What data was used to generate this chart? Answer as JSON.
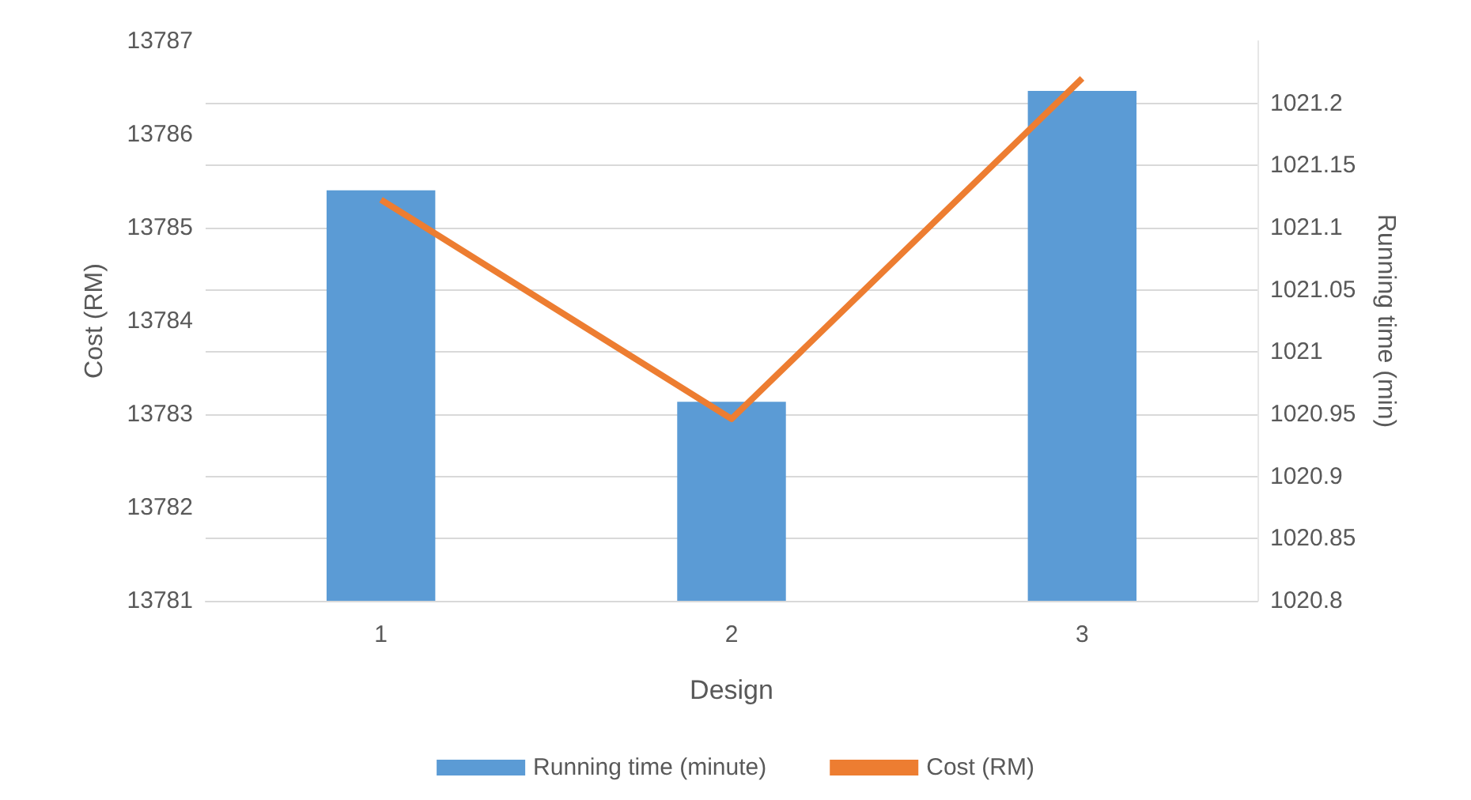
{
  "chart_data": {
    "type": "bar",
    "xlabel": "Design",
    "ylabel": "Cost (RM)",
    "y2label": "Running time (min)",
    "categories": [
      "1",
      "2",
      "3"
    ],
    "series": [
      {
        "name": "Running time (minute)",
        "axis": "y2",
        "color": "#5b9bd5",
        "values": [
          1021.13,
          1020.96,
          1021.21
        ]
      },
      {
        "name": "Cost (RM)",
        "type": "line",
        "color": "#ed7d31",
        "values": [
          13785.3,
          13782.95,
          13786.6
        ]
      }
    ],
    "ylim": [
      13781,
      13787
    ],
    "yticks": [
      13781,
      13782,
      13783,
      13784,
      13785,
      13786,
      13787
    ],
    "y2lim": [
      1020.8,
      1021.25
    ],
    "y2ticks": [
      1020.8,
      1020.85,
      1020.9,
      1020.95,
      1021,
      1021.05,
      1021.1,
      1021.15,
      1021.2
    ],
    "grid": true,
    "legend": "bottom",
    "marker": "none"
  }
}
